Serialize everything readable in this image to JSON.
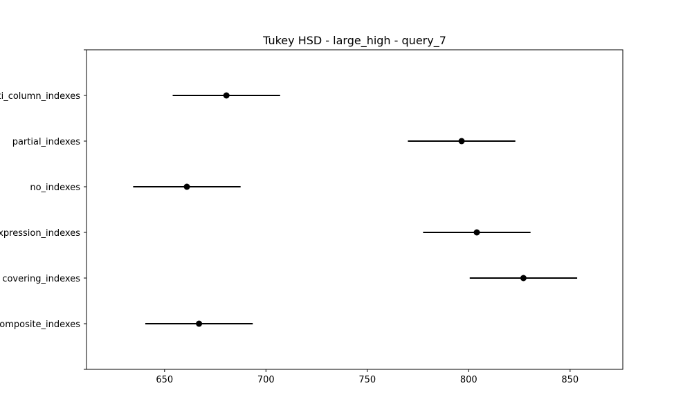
{
  "chart_data": {
    "type": "errorbar",
    "title": "Tukey HSD - large_high - query_7",
    "xlabel": "",
    "ylabel": "",
    "xlim": [
      611.5,
      876
    ],
    "x_ticks": [
      650,
      700,
      750,
      800,
      850
    ],
    "categories": [
      "multi_column_indexes",
      "partial_indexes",
      "no_indexes",
      "expression_indexes",
      "covering_indexes",
      "composite_indexes"
    ],
    "series": [
      {
        "points": [
          {
            "category": "multi_column_indexes",
            "mean": 680.5,
            "lower": 654.0,
            "upper": 707.0
          },
          {
            "category": "partial_indexes",
            "mean": 796.5,
            "lower": 770.0,
            "upper": 823.0
          },
          {
            "category": "no_indexes",
            "mean": 661.0,
            "lower": 634.5,
            "upper": 687.5
          },
          {
            "category": "expression_indexes",
            "mean": 804.0,
            "lower": 777.5,
            "upper": 830.5
          },
          {
            "category": "covering_indexes",
            "mean": 827.0,
            "lower": 800.5,
            "upper": 853.5
          },
          {
            "category": "composite_indexes",
            "mean": 667.0,
            "lower": 640.5,
            "upper": 693.5
          }
        ]
      }
    ],
    "grid": false,
    "colors": {
      "marker": "#000000",
      "line": "#000000",
      "axes": "#000000"
    }
  }
}
